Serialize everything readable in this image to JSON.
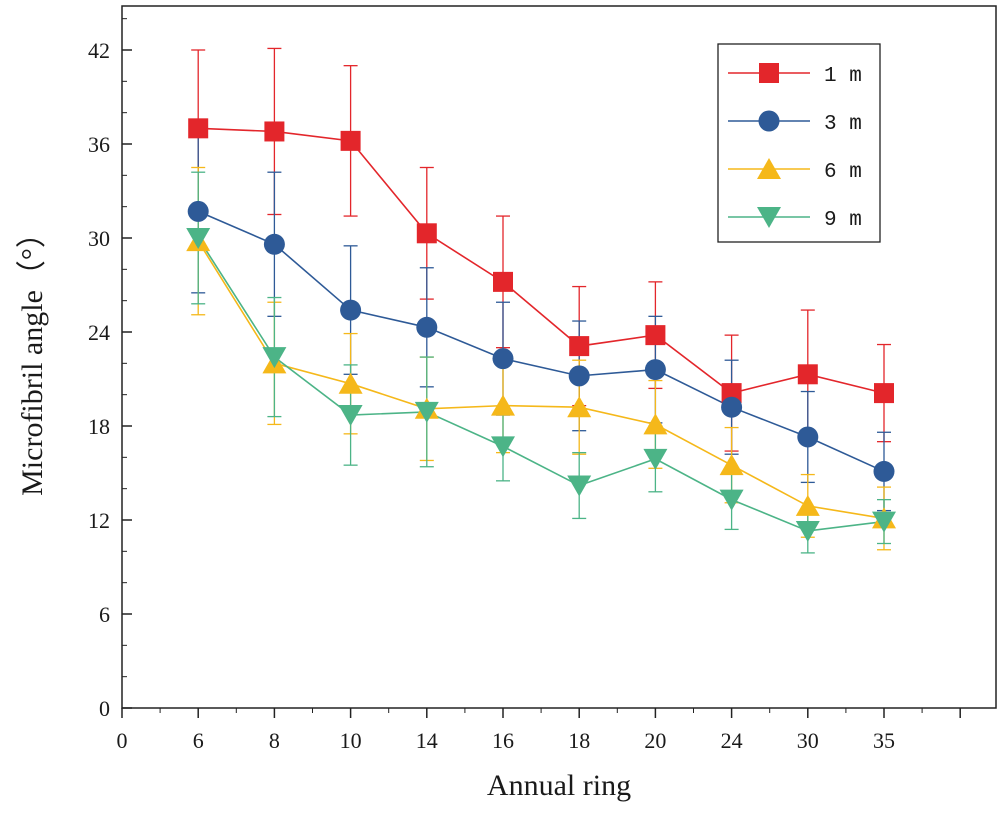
{
  "chart_data": {
    "type": "line",
    "xlabel": "Annual ring",
    "ylabel": "Microfibril angle（°）",
    "categories": [
      "0",
      "6",
      "8",
      "10",
      "14",
      "16",
      "18",
      "20",
      "24",
      "30",
      "35"
    ],
    "ylim": [
      0,
      45
    ],
    "yticks": [
      0,
      6,
      12,
      18,
      24,
      30,
      36,
      42
    ],
    "legend_position": "top-right",
    "series": [
      {
        "name": "1 m",
        "marker": "square",
        "color": "#e3262b",
        "values": [
          null,
          37.0,
          36.8,
          36.2,
          30.3,
          27.2,
          23.1,
          23.8,
          20.1,
          21.3,
          20.1
        ],
        "errors": [
          null,
          5.0,
          5.3,
          4.8,
          4.2,
          4.2,
          3.8,
          3.4,
          3.7,
          4.1,
          3.1
        ]
      },
      {
        "name": "3 m",
        "marker": "circle",
        "color": "#2e5a97",
        "values": [
          null,
          31.7,
          29.6,
          25.4,
          24.3,
          22.3,
          21.2,
          21.6,
          19.2,
          17.3,
          15.1
        ],
        "errors": [
          null,
          5.2,
          4.6,
          4.1,
          3.8,
          3.6,
          3.5,
          3.4,
          3.0,
          2.9,
          2.5
        ]
      },
      {
        "name": "6 m",
        "marker": "triangle-up",
        "color": "#f5b81a",
        "values": [
          null,
          29.8,
          22.0,
          20.7,
          19.1,
          19.3,
          19.2,
          18.1,
          15.5,
          12.9,
          12.1
        ],
        "errors": [
          null,
          4.7,
          3.9,
          3.2,
          3.3,
          3.0,
          3.0,
          2.8,
          2.4,
          2.0,
          2.0
        ]
      },
      {
        "name": "9 m",
        "marker": "triangle-down",
        "color": "#4cb487",
        "values": [
          null,
          30.0,
          22.4,
          18.7,
          18.9,
          16.7,
          14.2,
          15.9,
          13.3,
          11.3,
          11.9
        ],
        "errors": [
          null,
          4.2,
          3.8,
          3.2,
          3.5,
          2.2,
          2.1,
          2.1,
          1.9,
          1.4,
          1.4
        ]
      }
    ]
  }
}
